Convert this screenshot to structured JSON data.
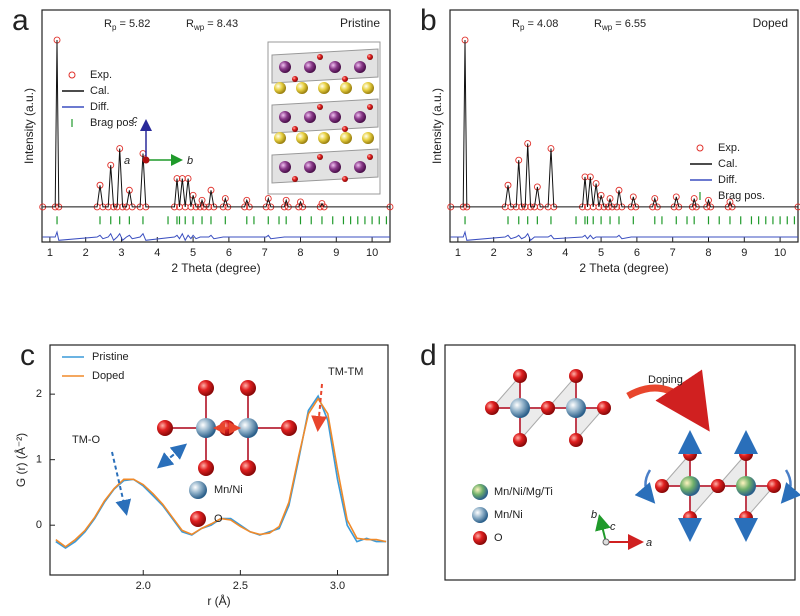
{
  "chart_data": [
    {
      "type": "line",
      "panel": "a",
      "label": "Pristine",
      "annotations": [
        {
          "symbol": "R",
          "subscript": "p",
          "text": " = 5.82"
        },
        {
          "symbol": "R",
          "subscript": "wp",
          "text": " = 8.43"
        }
      ],
      "inset_axes": [
        "c",
        "a",
        "b"
      ],
      "xlabel": "2 Theta (degree)",
      "ylabel": "Intensity (a.u.)",
      "xlim": [
        0.78,
        10.5
      ],
      "ylim": [
        -21,
        118
      ],
      "xticks": [
        1,
        2,
        3,
        4,
        5,
        6,
        7,
        8,
        9,
        10
      ],
      "legend": "center left",
      "x": [
        0.8,
        1.15,
        1.2,
        1.25,
        2.32,
        2.4,
        2.48,
        2.63,
        2.7,
        2.78,
        2.88,
        2.95,
        3.03,
        3.14,
        3.22,
        3.3,
        3.52,
        3.6,
        3.68,
        4.48,
        4.55,
        4.62,
        4.7,
        4.78,
        4.86,
        4.94,
        5.0,
        5.08,
        5.2,
        5.25,
        5.31,
        5.44,
        5.5,
        5.58,
        5.84,
        5.9,
        5.97,
        6.44,
        6.5,
        6.57,
        7.04,
        7.1,
        7.17,
        7.55,
        7.6,
        7.66,
        7.95,
        8.0,
        8.06,
        8.55,
        8.6,
        8.66,
        10.5
      ],
      "series": [
        {
          "name": "Exp.",
          "style": "scatter",
          "color": "#e0302a",
          "values": [
            0,
            0,
            100,
            0,
            0,
            13,
            0,
            0,
            25,
            0,
            0,
            35,
            0,
            0,
            10,
            0,
            0,
            32,
            0,
            0,
            17,
            0,
            17,
            0,
            17,
            0,
            7,
            0,
            0,
            4,
            0,
            0,
            10,
            0,
            0,
            5,
            0,
            0,
            4,
            0,
            0,
            5,
            0,
            0,
            4,
            0,
            0,
            3,
            0,
            0,
            2,
            0,
            0
          ]
        },
        {
          "name": "Cal.",
          "style": "line",
          "color": "#111111",
          "values": [
            0,
            0,
            100,
            0,
            0,
            13,
            0,
            0,
            25,
            0,
            0,
            35,
            0,
            0,
            10,
            0,
            0,
            32,
            0,
            0,
            17,
            0,
            17,
            0,
            17,
            0,
            7,
            0,
            0,
            4,
            0,
            0,
            10,
            0,
            0,
            5,
            0,
            0,
            4,
            0,
            0,
            5,
            0,
            0,
            4,
            0,
            0,
            3,
            0,
            0,
            2,
            0,
            0
          ]
        },
        {
          "name": "Diff.",
          "style": "line",
          "color": "#3b4fc0",
          "values": [
            -18,
            -18,
            -15,
            -20,
            -18,
            -17,
            -19,
            -18,
            -16,
            -20,
            -18,
            -16,
            -20,
            -18,
            -17,
            -19,
            -18,
            -16,
            -20,
            -18,
            -17,
            -19,
            -16,
            -20,
            -17,
            -19,
            -17,
            -19,
            -18,
            -18,
            -18,
            -18,
            -17,
            -19,
            -18,
            -18,
            -18,
            -18,
            -18,
            -18,
            -18,
            -17,
            -19,
            -18,
            -18,
            -18,
            -18,
            -18,
            -18,
            -18,
            -18,
            -18,
            -18
          ]
        },
        {
          "name": "Brag pos.",
          "style": "ticks",
          "color": "#1f9a2a",
          "x": [
            1.2,
            2.4,
            2.7,
            2.95,
            3.22,
            3.6,
            4.3,
            4.55,
            4.62,
            4.78,
            5.0,
            5.25,
            5.5,
            5.9,
            6.5,
            6.7,
            7.1,
            7.4,
            7.6,
            8.0,
            8.3,
            8.6,
            8.9,
            9.2,
            9.4,
            9.6,
            9.8,
            10.0,
            10.2,
            10.4
          ],
          "values": [
            -8,
            -8,
            -8,
            -8,
            -8,
            -8,
            -8,
            -8,
            -8,
            -8,
            -8,
            -8,
            -8,
            -8,
            -8,
            -8,
            -8,
            -8,
            -8,
            -8,
            -8,
            -8,
            -8,
            -8,
            -8,
            -8,
            -8,
            -8,
            -8,
            -8
          ]
        }
      ]
    },
    {
      "type": "line",
      "panel": "b",
      "label": "Doped",
      "annotations": [
        {
          "symbol": "R",
          "subscript": "p",
          "text": " = 4.08"
        },
        {
          "symbol": "R",
          "subscript": "wp",
          "text": " = 6.55"
        }
      ],
      "xlabel": "2 Theta (degree)",
      "ylabel": "Intensity (a.u.)",
      "xlim": [
        0.78,
        10.5
      ],
      "ylim": [
        -21,
        118
      ],
      "xticks": [
        1,
        2,
        3,
        4,
        5,
        6,
        7,
        8,
        9,
        10
      ],
      "legend": "center right",
      "x": [
        0.8,
        1.15,
        1.2,
        1.25,
        2.32,
        2.4,
        2.48,
        2.63,
        2.7,
        2.78,
        2.88,
        2.95,
        3.03,
        3.14,
        3.22,
        3.3,
        3.52,
        3.6,
        3.68,
        4.48,
        4.55,
        4.62,
        4.7,
        4.78,
        4.86,
        4.94,
        5.0,
        5.08,
        5.2,
        5.25,
        5.31,
        5.44,
        5.5,
        5.58,
        5.84,
        5.9,
        5.97,
        6.44,
        6.5,
        6.57,
        7.04,
        7.1,
        7.17,
        7.55,
        7.6,
        7.66,
        7.95,
        8.0,
        8.06,
        8.55,
        8.6,
        8.66,
        10.5
      ],
      "series": [
        {
          "name": "Exp.",
          "style": "scatter",
          "color": "#e0302a",
          "values": [
            0,
            0,
            100,
            0,
            0,
            13,
            0,
            0,
            28,
            0,
            0,
            38,
            0,
            0,
            12,
            0,
            0,
            35,
            0,
            0,
            18,
            0,
            18,
            0,
            14,
            0,
            7,
            0,
            0,
            5,
            0,
            0,
            10,
            0,
            0,
            6,
            0,
            0,
            5,
            0,
            0,
            6,
            0,
            0,
            5,
            0,
            0,
            4,
            0,
            0,
            3,
            0,
            0
          ]
        },
        {
          "name": "Cal.",
          "style": "line",
          "color": "#111111",
          "values": [
            0,
            0,
            100,
            0,
            0,
            13,
            0,
            0,
            28,
            0,
            0,
            38,
            0,
            0,
            12,
            0,
            0,
            35,
            0,
            0,
            18,
            0,
            18,
            0,
            14,
            0,
            7,
            0,
            0,
            5,
            0,
            0,
            10,
            0,
            0,
            6,
            0,
            0,
            5,
            0,
            0,
            6,
            0,
            0,
            5,
            0,
            0,
            4,
            0,
            0,
            3,
            0,
            0
          ]
        },
        {
          "name": "Diff.",
          "style": "line",
          "color": "#3b4fc0",
          "values": [
            -18,
            -18,
            -15,
            -20,
            -18,
            -17,
            -19,
            -18,
            -17,
            -19,
            -18,
            -16,
            -20,
            -18,
            -18,
            -18,
            -18,
            -17,
            -19,
            -18,
            -17,
            -19,
            -17,
            -19,
            -18,
            -18,
            -18,
            -18,
            -18,
            -18,
            -18,
            -18,
            -17,
            -19,
            -18,
            -18,
            -18,
            -18,
            -18,
            -18,
            -18,
            -18,
            -18,
            -18,
            -18,
            -18,
            -18,
            -18,
            -18,
            -18,
            -18,
            -18,
            -18
          ]
        },
        {
          "name": "Brag pos.",
          "style": "ticks",
          "color": "#1f9a2a",
          "x": [
            1.2,
            2.4,
            2.7,
            2.95,
            3.22,
            3.6,
            4.3,
            4.55,
            4.62,
            4.78,
            5.0,
            5.25,
            5.5,
            5.9,
            6.5,
            6.7,
            7.1,
            7.4,
            7.6,
            8.0,
            8.3,
            8.6,
            8.9,
            9.2,
            9.4,
            9.6,
            9.8,
            10.0,
            10.2,
            10.4
          ],
          "values": [
            -8,
            -8,
            -8,
            -8,
            -8,
            -8,
            -8,
            -8,
            -8,
            -8,
            -8,
            -8,
            -8,
            -8,
            -8,
            -8,
            -8,
            -8,
            -8,
            -8,
            -8,
            -8,
            -8,
            -8,
            -8,
            -8,
            -8,
            -8,
            -8,
            -8
          ]
        }
      ]
    },
    {
      "type": "line",
      "panel": "c",
      "xlabel": "r (Å)",
      "ylabel": "G (r) (Å⁻²)",
      "annotations": [
        "TM-TM",
        "TM-O"
      ],
      "key": [
        "Mn/Ni",
        "O"
      ],
      "xlim": [
        1.52,
        3.26
      ],
      "ylim": [
        -0.76,
        2.75
      ],
      "xticks": [
        {
          "value": 2.0,
          "label": "2.0"
        },
        {
          "value": 2.5,
          "label": "2.5"
        },
        {
          "value": 3.0,
          "label": "3.0"
        }
      ],
      "yticks": [
        0,
        1,
        2
      ],
      "legend": "upper left",
      "x": [
        1.55,
        1.6,
        1.65,
        1.7,
        1.75,
        1.8,
        1.85,
        1.9,
        1.95,
        2.0,
        2.05,
        2.1,
        2.15,
        2.2,
        2.25,
        2.3,
        2.35,
        2.4,
        2.45,
        2.5,
        2.55,
        2.6,
        2.65,
        2.7,
        2.75,
        2.8,
        2.85,
        2.9,
        2.95,
        3.0,
        3.05,
        3.1,
        3.15,
        3.2,
        3.25
      ],
      "series": [
        {
          "name": "Pristine",
          "style": "line",
          "color": "#3a9ad9",
          "values": [
            -0.25,
            -0.35,
            -0.25,
            -0.1,
            0.1,
            0.35,
            0.55,
            0.68,
            0.7,
            0.6,
            0.45,
            0.3,
            0.1,
            -0.1,
            -0.15,
            -0.05,
            0.0,
            0.1,
            0.1,
            0.0,
            -0.1,
            -0.15,
            -0.1,
            -0.05,
            0.3,
            1.0,
            1.75,
            1.97,
            1.6,
            0.7,
            0.0,
            -0.25,
            -0.2,
            -0.25,
            -0.25
          ]
        },
        {
          "name": "Doped",
          "style": "line",
          "color": "#f08a2a",
          "values": [
            -0.22,
            -0.33,
            -0.22,
            -0.08,
            0.12,
            0.37,
            0.56,
            0.7,
            0.7,
            0.62,
            0.48,
            0.32,
            0.12,
            -0.08,
            -0.14,
            -0.05,
            0.02,
            0.1,
            0.08,
            -0.02,
            -0.1,
            -0.14,
            -0.12,
            -0.02,
            0.35,
            1.05,
            1.7,
            1.93,
            1.7,
            0.85,
            0.08,
            -0.2,
            -0.22,
            -0.22,
            -0.25
          ]
        }
      ]
    }
  ],
  "diagram": {
    "panel": "d",
    "arrow_label": "Doping",
    "key": [
      "Mn/Ni/Mg/Ti",
      "Mn/Ni",
      "O"
    ],
    "axes": [
      "b",
      "c",
      "a"
    ]
  }
}
